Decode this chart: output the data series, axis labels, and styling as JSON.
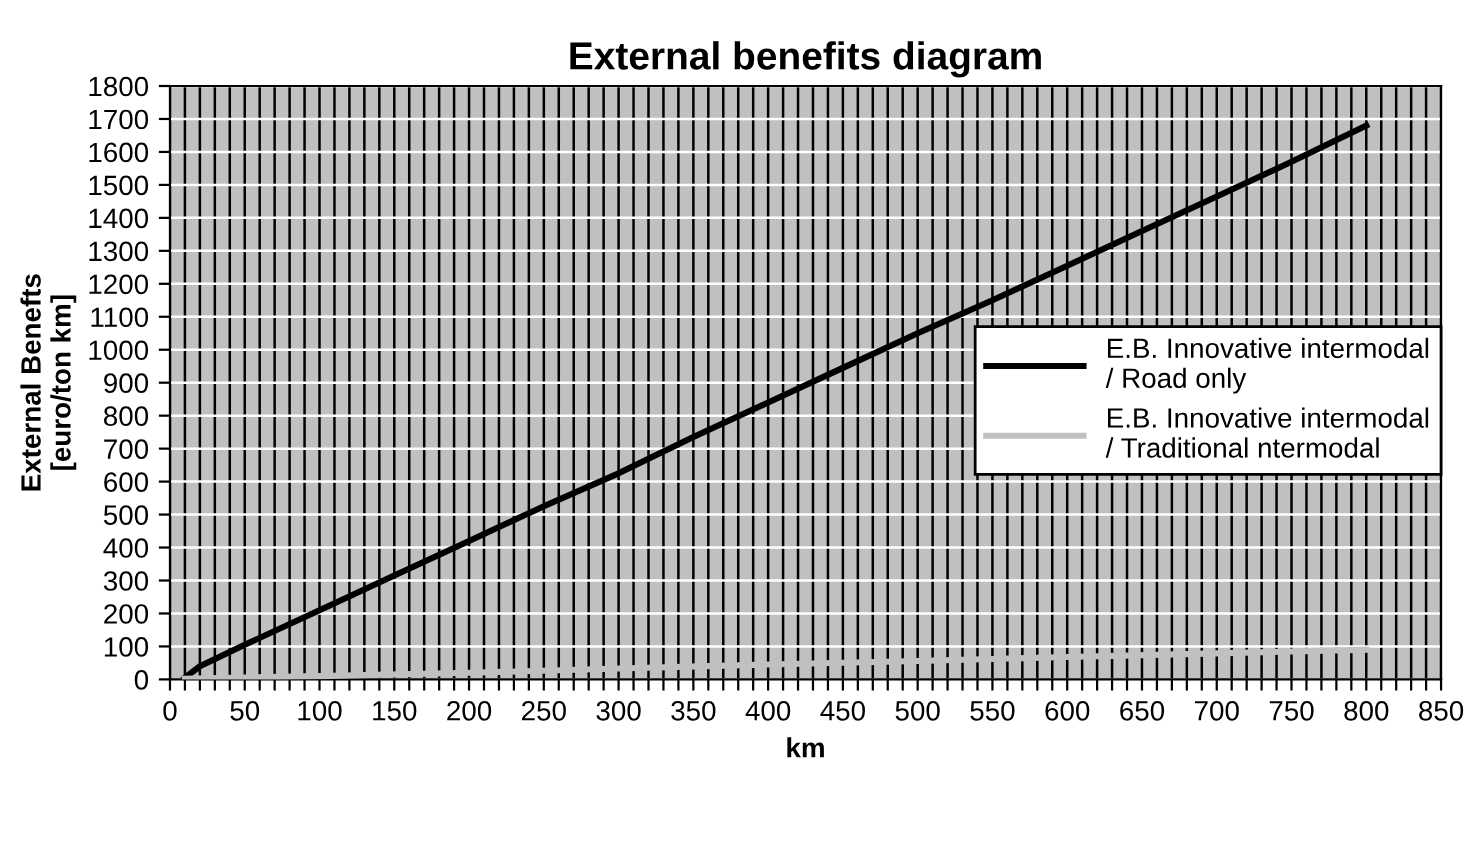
{
  "chart_data": {
    "type": "line",
    "title": "External benefits diagram",
    "xlabel": "km",
    "ylabel": "External Benefts\n[euro/ton km]",
    "series": [
      {
        "name": "E.B. Innovative intermodal\n/ Road only",
        "color": "#000000",
        "x": [
          10,
          20,
          50,
          100,
          150,
          200,
          250,
          300,
          350,
          400,
          450,
          500,
          550,
          600,
          650,
          700,
          750,
          800
        ],
        "values": [
          5,
          40,
          105,
          210,
          315,
          420,
          525,
          625,
          735,
          840,
          945,
          1050,
          1150,
          1255,
          1360,
          1465,
          1570,
          1680
        ]
      },
      {
        "name": "E.B. Innovative intermodal\n/ Traditional ntermodal",
        "color": "#c0c0c0",
        "x": [
          10,
          100,
          200,
          300,
          400,
          500,
          600,
          700,
          800
        ],
        "values": [
          2,
          10,
          20,
          33,
          45,
          56,
          68,
          79,
          90
        ]
      }
    ],
    "xlim": [
      0,
      850
    ],
    "xticks": [
      0,
      {
        "value": 10,
        "label": null
      },
      {
        "value": 20,
        "label": null
      },
      {
        "value": 30,
        "label": null
      },
      {
        "value": 40,
        "label": null
      },
      50,
      {
        "value": 60,
        "label": null
      },
      {
        "value": 70,
        "label": null
      },
      {
        "value": 80,
        "label": null
      },
      {
        "value": 90,
        "label": null
      },
      100,
      {
        "value": 110,
        "label": null
      },
      {
        "value": 120,
        "label": null
      },
      {
        "value": 130,
        "label": null
      },
      {
        "value": 140,
        "label": null
      },
      150,
      {
        "value": 160,
        "label": null
      },
      {
        "value": 170,
        "label": null
      },
      {
        "value": 180,
        "label": null
      },
      {
        "value": 190,
        "label": null
      },
      200,
      {
        "value": 210,
        "label": null
      },
      {
        "value": 220,
        "label": null
      },
      {
        "value": 230,
        "label": null
      },
      {
        "value": 240,
        "label": null
      },
      250,
      {
        "value": 260,
        "label": null
      },
      {
        "value": 270,
        "label": null
      },
      {
        "value": 280,
        "label": null
      },
      {
        "value": 290,
        "label": null
      },
      300,
      {
        "value": 310,
        "label": null
      },
      {
        "value": 320,
        "label": null
      },
      {
        "value": 330,
        "label": null
      },
      {
        "value": 340,
        "label": null
      },
      350,
      {
        "value": 360,
        "label": null
      },
      {
        "value": 370,
        "label": null
      },
      {
        "value": 380,
        "label": null
      },
      {
        "value": 390,
        "label": null
      },
      400,
      {
        "value": 410,
        "label": null
      },
      {
        "value": 420,
        "label": null
      },
      {
        "value": 430,
        "label": null
      },
      {
        "value": 440,
        "label": null
      },
      450,
      {
        "value": 460,
        "label": null
      },
      {
        "value": 470,
        "label": null
      },
      {
        "value": 480,
        "label": null
      },
      {
        "value": 490,
        "label": null
      },
      500,
      {
        "value": 510,
        "label": null
      },
      {
        "value": 520,
        "label": null
      },
      {
        "value": 530,
        "label": null
      },
      {
        "value": 540,
        "label": null
      },
      550,
      {
        "value": 560,
        "label": null
      },
      {
        "value": 570,
        "label": null
      },
      {
        "value": 580,
        "label": null
      },
      {
        "value": 590,
        "label": null
      },
      600,
      {
        "value": 610,
        "label": null
      },
      {
        "value": 620,
        "label": null
      },
      {
        "value": 630,
        "label": null
      },
      {
        "value": 640,
        "label": null
      },
      650,
      {
        "value": 660,
        "label": null
      },
      {
        "value": 670,
        "label": null
      },
      {
        "value": 680,
        "label": null
      },
      {
        "value": 690,
        "label": null
      },
      700,
      {
        "value": 710,
        "label": null
      },
      {
        "value": 720,
        "label": null
      },
      {
        "value": 730,
        "label": null
      },
      {
        "value": 740,
        "label": null
      },
      750,
      {
        "value": 760,
        "label": null
      },
      {
        "value": 770,
        "label": null
      },
      {
        "value": 780,
        "label": null
      },
      {
        "value": 790,
        "label": null
      },
      800,
      {
        "value": 810,
        "label": null
      },
      {
        "value": 820,
        "label": null
      },
      {
        "value": 830,
        "label": null
      },
      {
        "value": 840,
        "label": null
      },
      850
    ],
    "ylim": [
      0,
      1800
    ],
    "yticks": [
      0,
      100,
      200,
      300,
      400,
      500,
      600,
      700,
      800,
      900,
      1000,
      1100,
      1200,
      1300,
      1400,
      1500,
      1600,
      1700,
      1800
    ],
    "grid": true,
    "legend": "right",
    "marker": "none",
    "line_style": "solid"
  }
}
